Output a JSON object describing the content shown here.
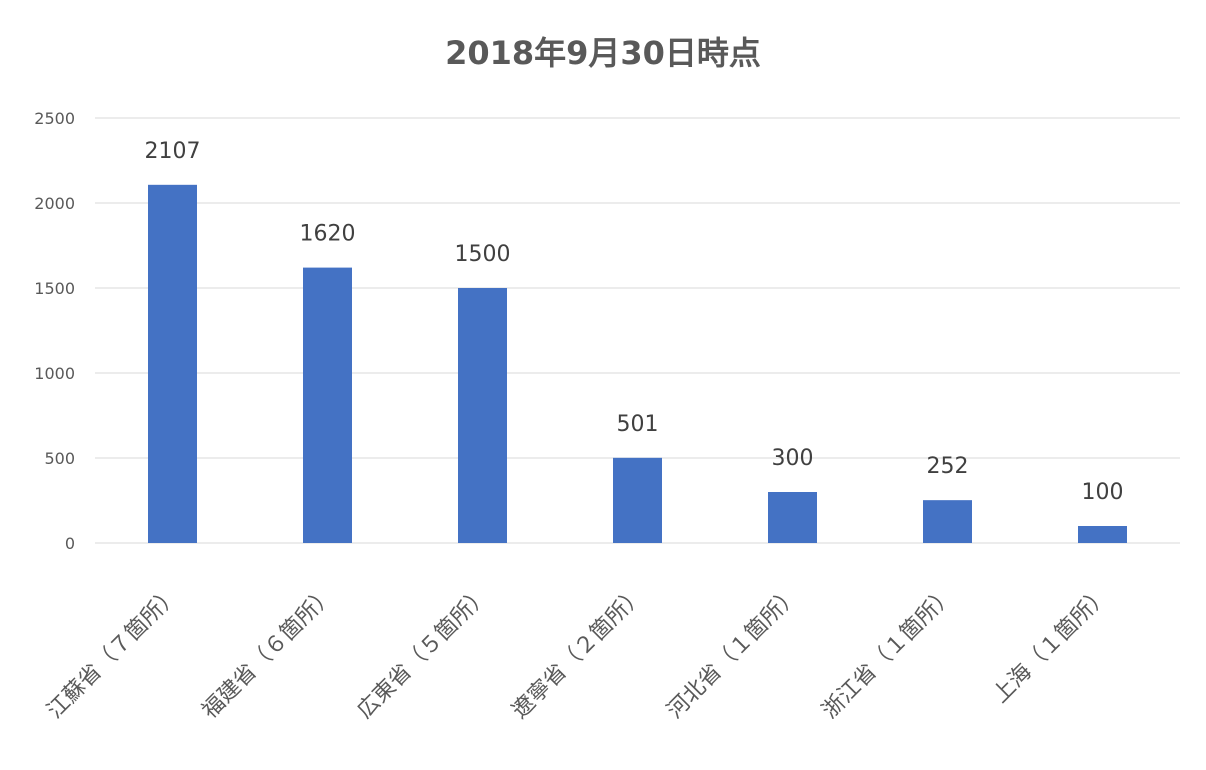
{
  "chart_data": {
    "type": "bar",
    "title": "2018年9月30日時点",
    "categories": [
      "江蘇省（７箇所）",
      "福建省（６箇所）",
      "広東省（５箇所）",
      "遼寧省（２箇所）",
      "河北省（１箇所）",
      "浙江省（１箇所）",
      "上海（１箇所）"
    ],
    "values": [
      2107,
      1620,
      1500,
      501,
      300,
      252,
      100
    ],
    "ylim": [
      0,
      2500
    ],
    "yticks": [
      0,
      500,
      1000,
      1500,
      2000,
      2500
    ],
    "grid": true,
    "bar_color": "#4472c4",
    "data_labels": true
  }
}
